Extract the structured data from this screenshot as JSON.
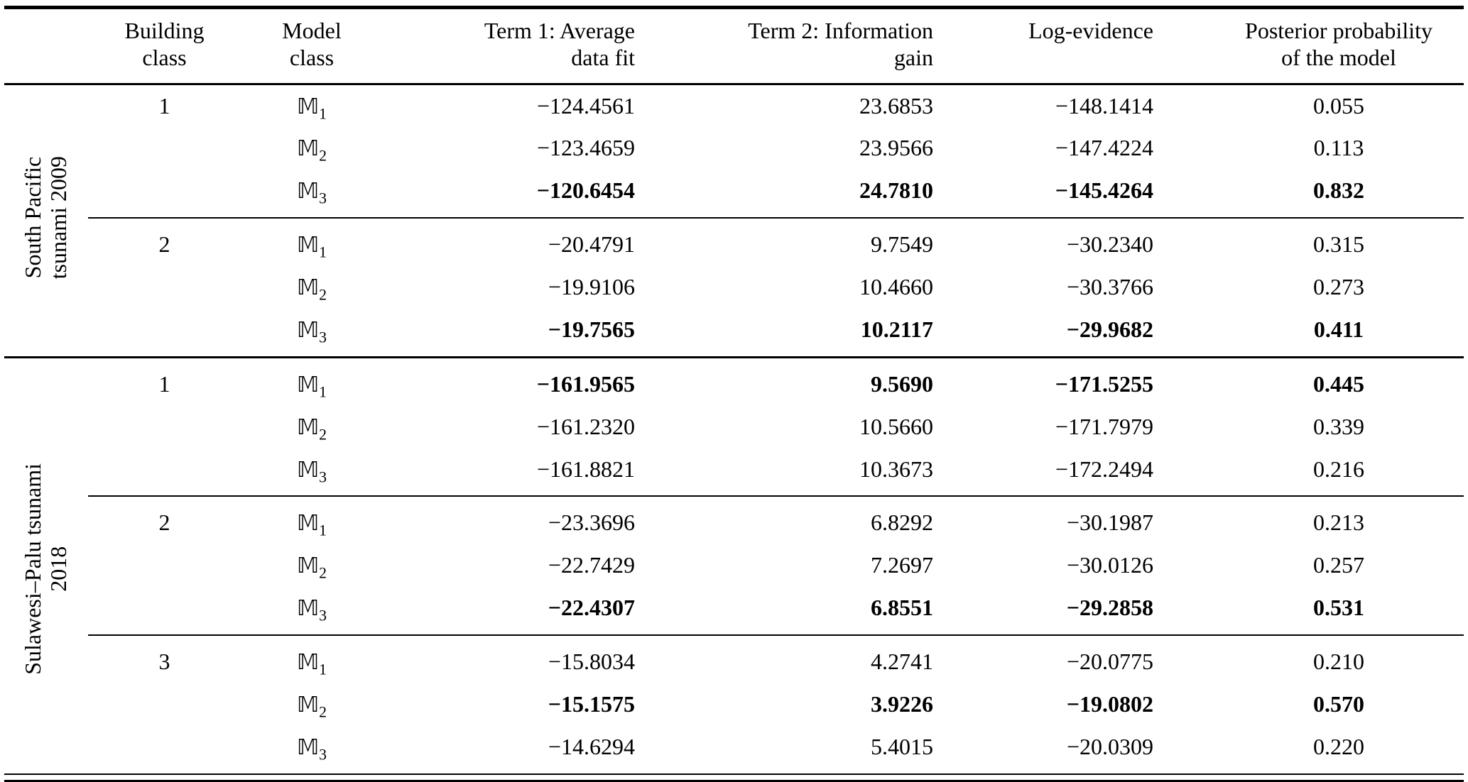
{
  "header": {
    "building_class": [
      "Building",
      "class"
    ],
    "model_class": [
      "Model",
      "class"
    ],
    "term1": [
      "Term 1: Average",
      "data fit"
    ],
    "term2": [
      "Term 2: Information",
      "gain"
    ],
    "log_evidence": [
      "Log-evidence"
    ],
    "posterior": [
      "Posterior probability",
      "of the model"
    ]
  },
  "groups": [
    {
      "label_lines": [
        "South Pacific",
        "tsunami 2009"
      ],
      "blocks": [
        {
          "building_class": "1",
          "rows": [
            {
              "model_main": "𝕄",
              "model_sub": "1",
              "term1": "−124.4561",
              "term2": "23.6853",
              "log_evidence": "−148.1414",
              "posterior": "0.055",
              "bold": false
            },
            {
              "model_main": "𝕄",
              "model_sub": "2",
              "term1": "−123.4659",
              "term2": "23.9566",
              "log_evidence": "−147.4224",
              "posterior": "0.113",
              "bold": false
            },
            {
              "model_main": "𝕄",
              "model_sub": "3",
              "term1": "−120.6454",
              "term2": "24.7810",
              "log_evidence": "−145.4264",
              "posterior": "0.832",
              "bold": true
            }
          ]
        },
        {
          "building_class": "2",
          "rows": [
            {
              "model_main": "𝕄",
              "model_sub": "1",
              "term1": "−20.4791",
              "term2": "9.7549",
              "log_evidence": "−30.2340",
              "posterior": "0.315",
              "bold": false
            },
            {
              "model_main": "𝕄",
              "model_sub": "2",
              "term1": "−19.9106",
              "term2": "10.4660",
              "log_evidence": "−30.3766",
              "posterior": "0.273",
              "bold": false
            },
            {
              "model_main": "𝕄",
              "model_sub": "3",
              "term1": "−19.7565",
              "term2": "10.2117",
              "log_evidence": "−29.9682",
              "posterior": "0.411",
              "bold": true
            }
          ]
        }
      ]
    },
    {
      "label_lines": [
        "Sulawesi–Palu tsunami",
        "2018"
      ],
      "blocks": [
        {
          "building_class": "1",
          "rows": [
            {
              "model_main": "𝕄",
              "model_sub": "1",
              "term1": "−161.9565",
              "term2": "9.5690",
              "log_evidence": "−171.5255",
              "posterior": "0.445",
              "bold": true
            },
            {
              "model_main": "𝕄",
              "model_sub": "2",
              "term1": "−161.2320",
              "term2": "10.5660",
              "log_evidence": "−171.7979",
              "posterior": "0.339",
              "bold": false
            },
            {
              "model_main": "𝕄",
              "model_sub": "3",
              "term1": "−161.8821",
              "term2": "10.3673",
              "log_evidence": "−172.2494",
              "posterior": "0.216",
              "bold": false
            }
          ]
        },
        {
          "building_class": "2",
          "rows": [
            {
              "model_main": "𝕄",
              "model_sub": "1",
              "term1": "−23.3696",
              "term2": "6.8292",
              "log_evidence": "−30.1987",
              "posterior": "0.213",
              "bold": false
            },
            {
              "model_main": "𝕄",
              "model_sub": "2",
              "term1": "−22.7429",
              "term2": "7.2697",
              "log_evidence": "−30.0126",
              "posterior": "0.257",
              "bold": false
            },
            {
              "model_main": "𝕄",
              "model_sub": "3",
              "term1": "−22.4307",
              "term2": "6.8551",
              "log_evidence": "−29.2858",
              "posterior": "0.531",
              "bold": true
            }
          ]
        },
        {
          "building_class": "3",
          "rows": [
            {
              "model_main": "𝕄",
              "model_sub": "1",
              "term1": "−15.8034",
              "term2": "4.2741",
              "log_evidence": "−20.0775",
              "posterior": "0.210",
              "bold": false
            },
            {
              "model_main": "𝕄",
              "model_sub": "2",
              "term1": "−15.1575",
              "term2": "3.9226",
              "log_evidence": "−19.0802",
              "posterior": "0.570",
              "bold": true
            },
            {
              "model_main": "𝕄",
              "model_sub": "3",
              "term1": "−14.6294",
              "term2": "5.4015",
              "log_evidence": "−20.0309",
              "posterior": "0.220",
              "bold": false
            }
          ]
        }
      ]
    }
  ]
}
